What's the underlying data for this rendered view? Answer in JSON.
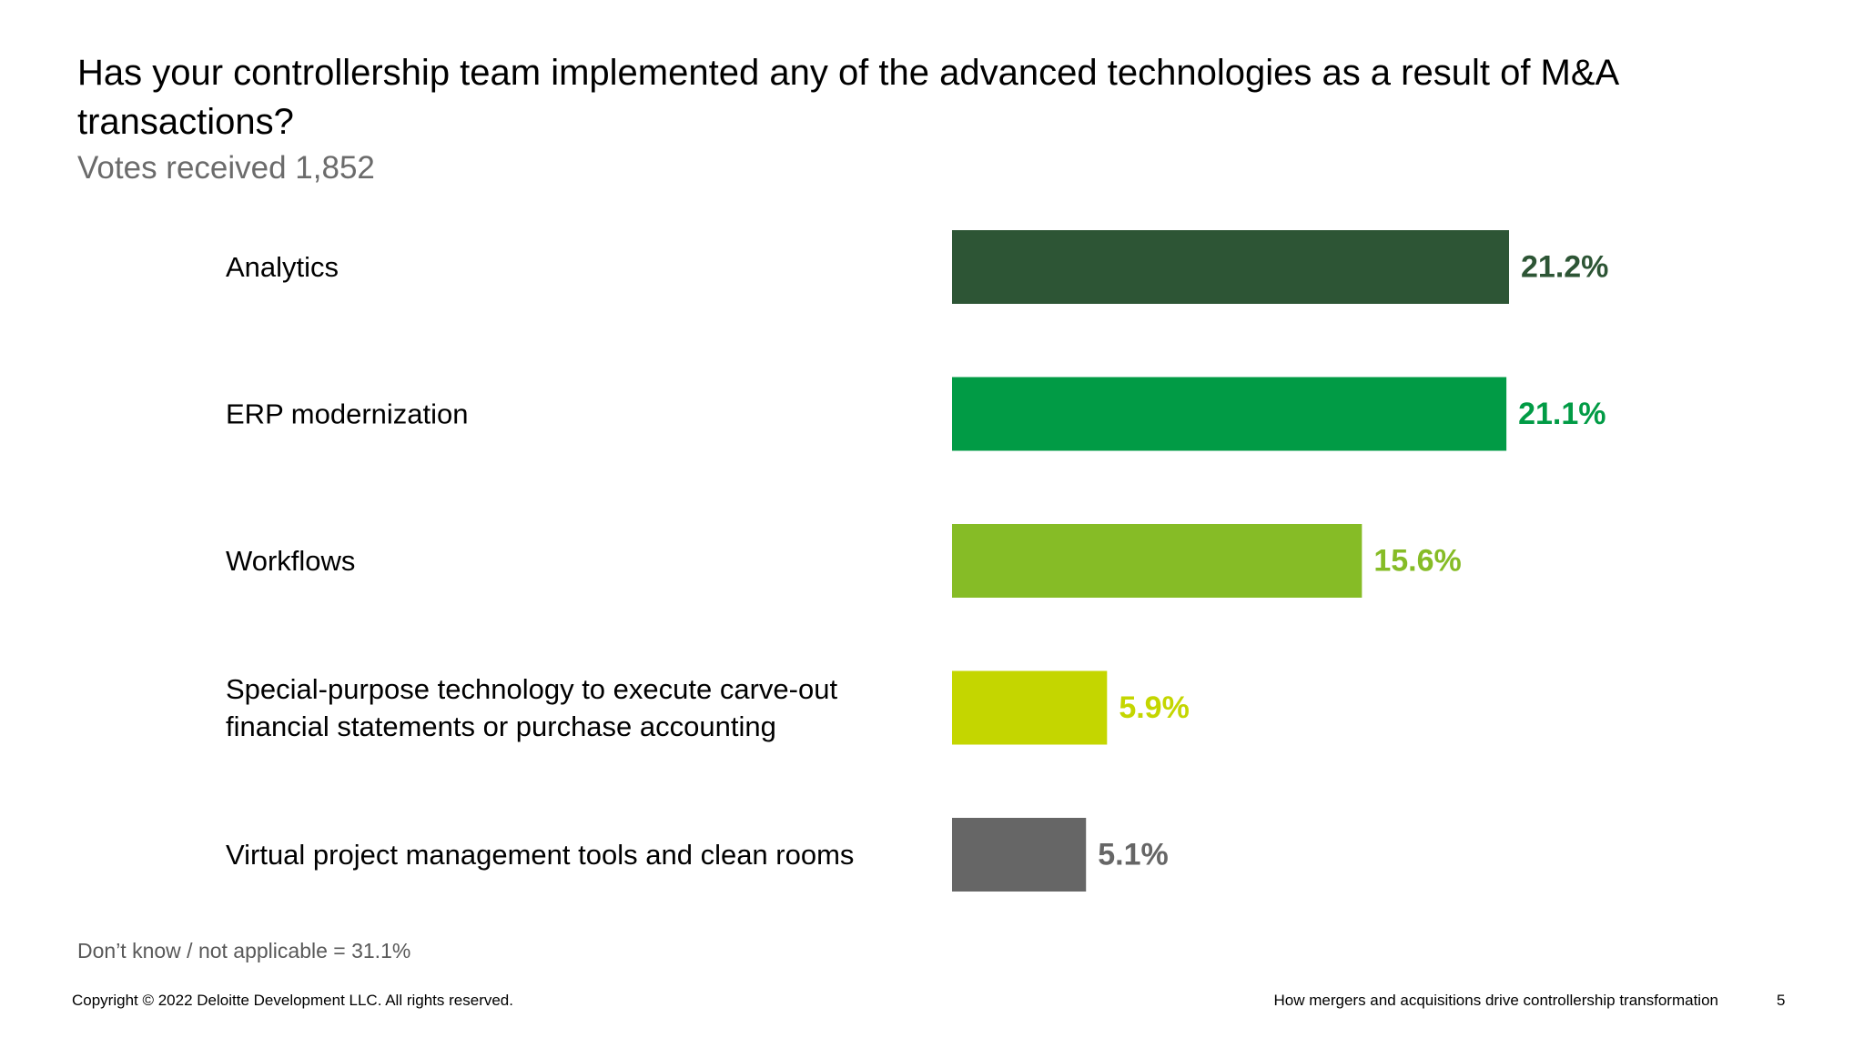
{
  "header": {
    "title": "Has your controllership team implemented any of the advanced technologies as a result of M&A transactions?",
    "subtitle": "Votes received 1,852"
  },
  "chart_data": {
    "type": "bar",
    "orientation": "horizontal",
    "categories": [
      [
        "Analytics"
      ],
      [
        "ERP modernization"
      ],
      [
        "Workflows"
      ],
      [
        "Special-purpose technology to execute carve-out",
        "financial statements or purchase accounting"
      ],
      [
        "Virtual project management tools and clean rooms"
      ]
    ],
    "values": [
      21.2,
      21.1,
      15.6,
      5.9,
      5.1
    ],
    "value_labels": [
      "21.2%",
      "21.1%",
      "15.6%",
      "5.9%",
      "5.1%"
    ],
    "colors": [
      "#2d5535",
      "#019b45",
      "#86bc26",
      "#c4d600",
      "#666666"
    ],
    "xlim": [
      0,
      21.2
    ],
    "grid": false,
    "legend": "none"
  },
  "footnote": "Don’t know / not applicable = 31.1%",
  "footer": {
    "copyright": "Copyright © 2022 Deloitte Development LLC. All rights reserved.",
    "doc_title": "How mergers and acquisitions drive controllership transformation",
    "page": "5"
  }
}
